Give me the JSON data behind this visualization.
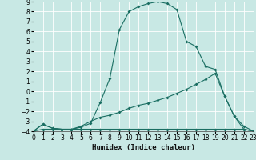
{
  "xlabel": "Humidex (Indice chaleur)",
  "bg_color": "#c8e8e4",
  "grid_color": "#ffffff",
  "line_color": "#1a6e62",
  "xlim": [
    0,
    23
  ],
  "ylim": [
    -4,
    9
  ],
  "xticks": [
    0,
    1,
    2,
    3,
    4,
    5,
    6,
    7,
    8,
    9,
    10,
    11,
    12,
    13,
    14,
    15,
    16,
    17,
    18,
    19,
    20,
    21,
    22,
    23
  ],
  "yticks": [
    -4,
    -3,
    -2,
    -1,
    0,
    1,
    2,
    3,
    4,
    5,
    6,
    7,
    8,
    9
  ],
  "c1_x": [
    0,
    1,
    2,
    3,
    4,
    5,
    6,
    7,
    8,
    9,
    10,
    11,
    12,
    13,
    14,
    15,
    16,
    17,
    18,
    19,
    20,
    21,
    22,
    23
  ],
  "c1_y": [
    -4.0,
    -3.3,
    -3.7,
    -3.8,
    -3.8,
    -3.6,
    -3.2,
    -1.1,
    1.3,
    6.2,
    8.0,
    8.5,
    8.8,
    9.0,
    8.8,
    8.2,
    5.0,
    4.5,
    2.5,
    2.2,
    -0.5,
    -2.5,
    -3.8,
    -4.0
  ],
  "c2_x": [
    0,
    1,
    2,
    3,
    4,
    5,
    6,
    7,
    8,
    9,
    10,
    11,
    12,
    13,
    14,
    15,
    16,
    17,
    18,
    19,
    20,
    21,
    22,
    23
  ],
  "c2_y": [
    -4.0,
    -3.3,
    -3.7,
    -3.8,
    -3.8,
    -3.5,
    -3.0,
    -2.6,
    -2.4,
    -2.1,
    -1.7,
    -1.4,
    -1.2,
    -0.9,
    -0.6,
    -0.2,
    0.2,
    0.7,
    1.2,
    1.8,
    -0.5,
    -2.5,
    -3.5,
    -4.0
  ],
  "c3_x": [
    0,
    1,
    2,
    3,
    4,
    5,
    6,
    7,
    8,
    9,
    10,
    11,
    12,
    13,
    14,
    15,
    16,
    17,
    18,
    19,
    20,
    21,
    22,
    23
  ],
  "c3_y": [
    -4.0,
    -3.8,
    -3.8,
    -3.8,
    -3.8,
    -3.8,
    -3.8,
    -3.8,
    -3.8,
    -3.8,
    -3.8,
    -3.8,
    -3.8,
    -3.8,
    -3.8,
    -3.8,
    -3.8,
    -3.8,
    -3.8,
    -3.8,
    -3.8,
    -3.8,
    -3.8,
    -4.0
  ],
  "tick_fontsize": 5.5,
  "xlabel_fontsize": 6.5
}
